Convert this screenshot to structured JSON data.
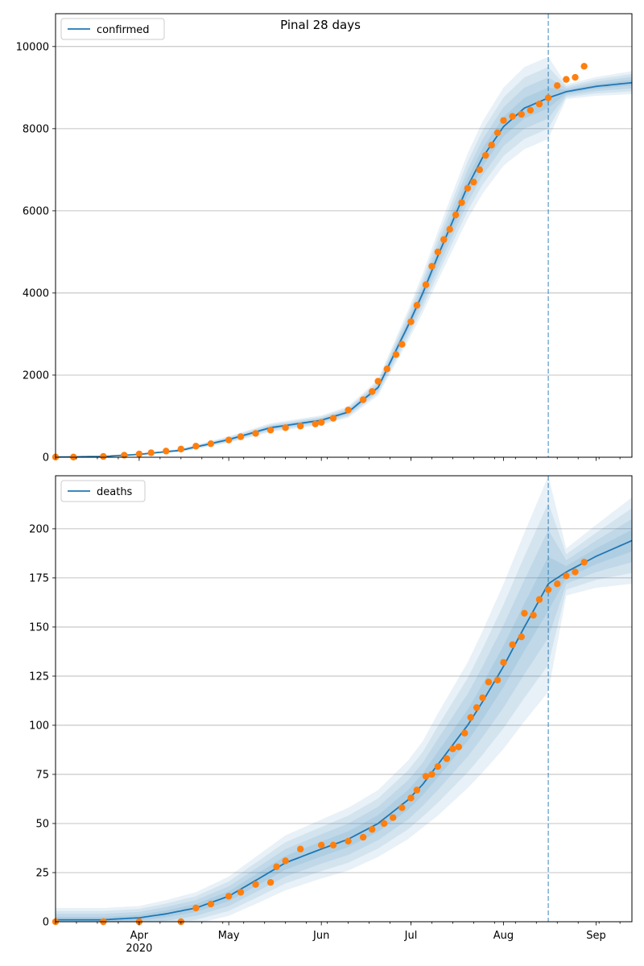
{
  "title": "Pinal 28 days",
  "colors": {
    "model": "#1f77b4",
    "observed": "#ff7f0e",
    "grid": "#b0b0b0",
    "band": "#1f77b4",
    "forecast_line": "#1f77b4"
  },
  "x_axis": {
    "start_date": "2020-03-04",
    "end_date": "2020-09-13",
    "month_ticks": [
      {
        "date": "2020-04-01",
        "label": "Apr",
        "sublabel": "2020"
      },
      {
        "date": "2020-05-01",
        "label": "May",
        "sublabel": ""
      },
      {
        "date": "2020-06-01",
        "label": "Jun",
        "sublabel": ""
      },
      {
        "date": "2020-07-01",
        "label": "Jul",
        "sublabel": ""
      },
      {
        "date": "2020-08-01",
        "label": "Aug",
        "sublabel": ""
      },
      {
        "date": "2020-09-01",
        "label": "Sep",
        "sublabel": ""
      }
    ],
    "forecast_start": "2020-08-16"
  },
  "chart_data": [
    {
      "type": "line",
      "legend": "confirmed",
      "legend_position": "top-left",
      "ylim": [
        0,
        10800
      ],
      "yticks": [
        0,
        2000,
        4000,
        6000,
        8000,
        10000
      ],
      "grid": "horizontal",
      "model": {
        "x": [
          "2020-03-04",
          "2020-03-20",
          "2020-04-01",
          "2020-04-15",
          "2020-05-01",
          "2020-05-15",
          "2020-06-01",
          "2020-06-10",
          "2020-06-20",
          "2020-06-30",
          "2020-07-05",
          "2020-07-10",
          "2020-07-20",
          "2020-07-25",
          "2020-08-01",
          "2020-08-08",
          "2020-08-16",
          "2020-08-22",
          "2020-09-01",
          "2020-09-13"
        ],
        "y": [
          5,
          20,
          70,
          170,
          430,
          720,
          900,
          1100,
          1700,
          3200,
          4000,
          4900,
          6600,
          7300,
          8050,
          8500,
          8750,
          8900,
          9030,
          9120
        ],
        "band_width": [
          0,
          2,
          10,
          40,
          80,
          110,
          120,
          140,
          200,
          380,
          480,
          600,
          800,
          880,
          950,
          1000,
          1000,
          180,
          230,
          280
        ]
      },
      "observed": {
        "x": [
          "2020-03-04",
          "2020-03-10",
          "2020-03-20",
          "2020-03-27",
          "2020-04-01",
          "2020-04-05",
          "2020-04-10",
          "2020-04-15",
          "2020-04-20",
          "2020-04-25",
          "2020-05-01",
          "2020-05-05",
          "2020-05-10",
          "2020-05-15",
          "2020-05-20",
          "2020-05-25",
          "2020-05-30",
          "2020-06-01",
          "2020-06-05",
          "2020-06-10",
          "2020-06-15",
          "2020-06-18",
          "2020-06-20",
          "2020-06-23",
          "2020-06-26",
          "2020-06-28",
          "2020-07-01",
          "2020-07-03",
          "2020-07-06",
          "2020-07-08",
          "2020-07-10",
          "2020-07-12",
          "2020-07-14",
          "2020-07-16",
          "2020-07-18",
          "2020-07-20",
          "2020-07-22",
          "2020-07-24",
          "2020-07-26",
          "2020-07-28",
          "2020-07-30",
          "2020-08-01",
          "2020-08-04",
          "2020-08-07",
          "2020-08-10",
          "2020-08-13",
          "2020-08-16",
          "2020-08-19",
          "2020-08-22",
          "2020-08-25",
          "2020-08-28"
        ],
        "y": [
          5,
          5,
          20,
          50,
          80,
          110,
          150,
          200,
          270,
          330,
          420,
          500,
          580,
          660,
          720,
          760,
          810,
          850,
          950,
          1150,
          1400,
          1600,
          1850,
          2150,
          2500,
          2750,
          3300,
          3700,
          4200,
          4650,
          5000,
          5300,
          5550,
          5900,
          6200,
          6550,
          6700,
          7000,
          7350,
          7600,
          7900,
          8200,
          8300,
          8350,
          8450,
          8600,
          8750,
          9050,
          9200,
          9250,
          9520
        ]
      }
    },
    {
      "type": "line",
      "legend": "deaths",
      "legend_position": "top-left",
      "ylim": [
        0,
        227
      ],
      "yticks": [
        0,
        25,
        50,
        75,
        100,
        125,
        150,
        175,
        200
      ],
      "grid": "horizontal",
      "model": {
        "x": [
          "2020-03-04",
          "2020-03-20",
          "2020-04-01",
          "2020-04-10",
          "2020-04-20",
          "2020-05-01",
          "2020-05-10",
          "2020-05-20",
          "2020-06-01",
          "2020-06-10",
          "2020-06-20",
          "2020-06-30",
          "2020-07-05",
          "2020-07-10",
          "2020-07-20",
          "2020-07-25",
          "2020-08-01",
          "2020-08-08",
          "2020-08-16",
          "2020-08-22",
          "2020-09-01",
          "2020-09-13"
        ],
        "y": [
          1,
          1,
          2,
          4,
          7,
          13,
          21,
          30,
          37,
          42,
          50,
          62,
          70,
          80,
          100,
          112,
          130,
          150,
          172,
          178,
          186,
          194
        ],
        "band_width": [
          6,
          6,
          6,
          7,
          8,
          10,
          12,
          14,
          15,
          16,
          17,
          20,
          22,
          26,
          32,
          36,
          42,
          48,
          55,
          12,
          16,
          22
        ]
      },
      "observed": {
        "x": [
          "2020-03-04",
          "2020-03-20",
          "2020-04-01",
          "2020-04-15",
          "2020-04-20",
          "2020-04-25",
          "2020-05-01",
          "2020-05-05",
          "2020-05-10",
          "2020-05-15",
          "2020-05-17",
          "2020-05-20",
          "2020-05-25",
          "2020-06-01",
          "2020-06-05",
          "2020-06-10",
          "2020-06-15",
          "2020-06-18",
          "2020-06-22",
          "2020-06-25",
          "2020-06-28",
          "2020-07-01",
          "2020-07-03",
          "2020-07-06",
          "2020-07-08",
          "2020-07-10",
          "2020-07-13",
          "2020-07-15",
          "2020-07-17",
          "2020-07-19",
          "2020-07-21",
          "2020-07-23",
          "2020-07-25",
          "2020-07-27",
          "2020-07-30",
          "2020-08-01",
          "2020-08-04",
          "2020-08-07",
          "2020-08-08",
          "2020-08-11",
          "2020-08-13",
          "2020-08-16",
          "2020-08-19",
          "2020-08-22",
          "2020-08-25",
          "2020-08-28"
        ],
        "y": [
          0,
          0,
          0,
          0,
          7,
          9,
          13,
          15,
          19,
          20,
          28,
          31,
          37,
          39,
          39,
          41,
          43,
          47,
          50,
          53,
          58,
          63,
          67,
          74,
          75,
          79,
          83,
          88,
          89,
          96,
          104,
          109,
          114,
          122,
          123,
          132,
          141,
          145,
          157,
          156,
          164,
          169,
          172,
          176,
          178,
          183
        ]
      }
    }
  ]
}
